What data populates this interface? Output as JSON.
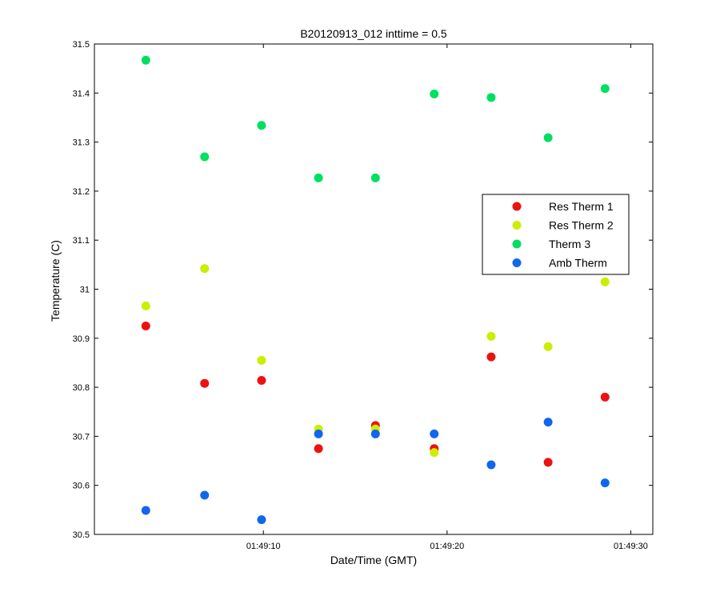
{
  "chart_data": {
    "type": "scatter",
    "title": "B20120913_012 inttime = 0.5",
    "xlabel": "Date/Time (GMT)",
    "ylabel": "Temperature (C)",
    "xlim": [
      "01:49:00.8",
      "01:49:31.2"
    ],
    "ylim": [
      30.5,
      31.5
    ],
    "x_ticks": [
      "01:49:10",
      "01:49:20",
      "01:49:30"
    ],
    "y_ticks": [
      "30.5",
      "30.6",
      "30.7",
      "30.8",
      "30.9",
      "31",
      "31.1",
      "31.2",
      "31.3",
      "31.4",
      "31.5"
    ],
    "legend_position": "right",
    "grid": false,
    "x": [
      "01:49:03.6",
      "01:49:06.8",
      "01:49:09.9",
      "01:49:13.0",
      "01:49:16.1",
      "01:49:19.3",
      "01:49:22.4",
      "01:49:25.5",
      "01:49:28.6"
    ],
    "series": [
      {
        "name": "Res Therm 1",
        "color": "#ee1111",
        "values": [
          30.925,
          30.808,
          30.814,
          30.675,
          30.722,
          30.675,
          30.862,
          30.647,
          30.78
        ]
      },
      {
        "name": "Res Therm 2",
        "color": "#ccee00",
        "values": [
          30.966,
          31.042,
          30.855,
          30.715,
          30.715,
          30.667,
          30.904,
          30.883,
          31.015
        ]
      },
      {
        "name": "Therm 3",
        "color": "#00e060",
        "values": [
          31.467,
          31.27,
          31.334,
          31.227,
          31.227,
          31.398,
          31.391,
          31.309,
          31.409
        ]
      },
      {
        "name": "Amb Therm",
        "color": "#1166ee",
        "values": [
          30.549,
          30.58,
          30.53,
          30.705,
          30.705,
          30.705,
          30.642,
          30.729,
          30.605
        ]
      }
    ]
  }
}
